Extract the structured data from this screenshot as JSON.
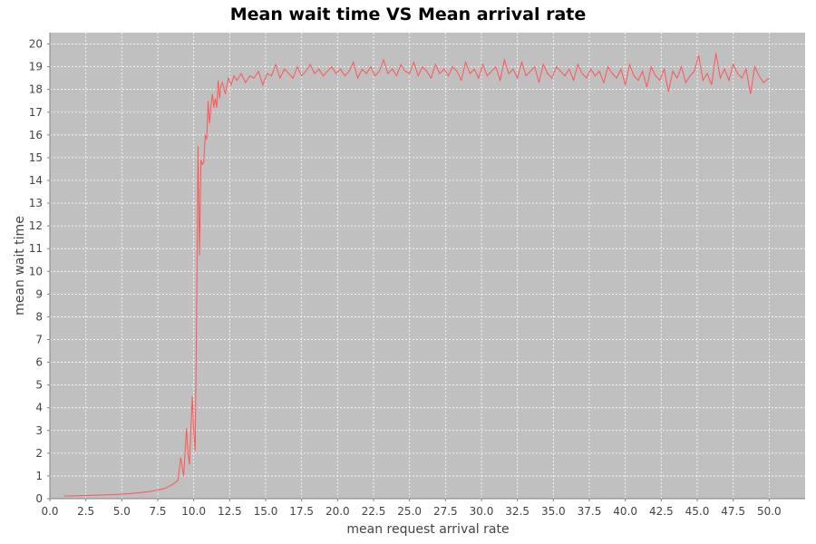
{
  "chart_data": {
    "type": "line",
    "title": "Mean wait time VS Mean arrival rate",
    "xlabel": "mean request arrival rate",
    "ylabel": "mean wait time",
    "xlim": [
      0.0,
      52.5
    ],
    "ylim": [
      0,
      20.5
    ],
    "x_ticks": [
      "0.0",
      "2.5",
      "5.0",
      "7.5",
      "10.0",
      "12.5",
      "15.0",
      "17.5",
      "20.0",
      "22.5",
      "25.0",
      "27.5",
      "30.0",
      "32.5",
      "35.0",
      "37.5",
      "40.0",
      "42.5",
      "45.0",
      "47.5",
      "50.0"
    ],
    "y_ticks": [
      "0",
      "1",
      "2",
      "3",
      "4",
      "5",
      "6",
      "7",
      "8",
      "9",
      "10",
      "11",
      "12",
      "13",
      "14",
      "15",
      "16",
      "17",
      "18",
      "19",
      "20"
    ],
    "grid": true,
    "colors": {
      "plot_background": "#c0c0c0",
      "grid": "#ffffff",
      "line": "#ff5555"
    },
    "series": [
      {
        "x": [
          1.0,
          1.5,
          2.0,
          2.5,
          3.0,
          3.5,
          4.0,
          4.5,
          5.0,
          5.5,
          6.0,
          6.5,
          7.0,
          7.5,
          8.0,
          8.3,
          8.6,
          8.9,
          9.1,
          9.3,
          9.5,
          9.6,
          9.7,
          9.9,
          10.0,
          10.1,
          10.2,
          10.3,
          10.4,
          10.5,
          10.6,
          10.7,
          10.8,
          10.9,
          11.0,
          11.1,
          11.2,
          11.3,
          11.4,
          11.5,
          11.6,
          11.7,
          11.8,
          11.9,
          12.0,
          12.2,
          12.4,
          12.6,
          12.8,
          13.0,
          13.3,
          13.6,
          13.9,
          14.2,
          14.5,
          14.8,
          15.1,
          15.4,
          15.7,
          16.0,
          16.3,
          16.6,
          16.9,
          17.2,
          17.5,
          17.8,
          18.1,
          18.4,
          18.7,
          19.0,
          19.3,
          19.6,
          19.9,
          20.2,
          20.5,
          20.8,
          21.1,
          21.4,
          21.7,
          22.0,
          22.3,
          22.6,
          22.9,
          23.2,
          23.5,
          23.8,
          24.1,
          24.4,
          24.7,
          25.0,
          25.3,
          25.6,
          25.9,
          26.2,
          26.5,
          26.8,
          27.1,
          27.4,
          27.7,
          28.0,
          28.3,
          28.6,
          28.9,
          29.2,
          29.5,
          29.8,
          30.1,
          30.4,
          30.7,
          31.0,
          31.3,
          31.6,
          31.9,
          32.2,
          32.5,
          32.8,
          33.1,
          33.4,
          33.7,
          34.0,
          34.3,
          34.6,
          34.9,
          35.2,
          35.5,
          35.8,
          36.1,
          36.4,
          36.7,
          37.0,
          37.3,
          37.6,
          37.9,
          38.2,
          38.5,
          38.8,
          39.1,
          39.4,
          39.7,
          40.0,
          40.3,
          40.6,
          40.9,
          41.2,
          41.5,
          41.8,
          42.1,
          42.4,
          42.7,
          43.0,
          43.3,
          43.6,
          43.9,
          44.2,
          44.5,
          44.8,
          45.1,
          45.4,
          45.7,
          46.0,
          46.3,
          46.6,
          46.9,
          47.2,
          47.5,
          47.8,
          48.1,
          48.4,
          48.7,
          49.0,
          49.3,
          49.6,
          50.0
        ],
        "values": [
          0.12,
          0.12,
          0.13,
          0.14,
          0.15,
          0.16,
          0.17,
          0.18,
          0.2,
          0.22,
          0.25,
          0.28,
          0.32,
          0.38,
          0.45,
          0.55,
          0.65,
          0.8,
          1.8,
          1.0,
          3.1,
          2.0,
          1.5,
          4.5,
          3.0,
          2.1,
          8.0,
          15.5,
          10.7,
          14.9,
          14.7,
          14.8,
          16.0,
          15.8,
          17.5,
          16.5,
          17.3,
          17.8,
          17.2,
          17.6,
          17.2,
          18.4,
          17.6,
          18.2,
          18.3,
          17.8,
          18.5,
          18.2,
          18.6,
          18.4,
          18.7,
          18.3,
          18.6,
          18.5,
          18.8,
          18.2,
          18.7,
          18.6,
          19.1,
          18.5,
          18.9,
          18.7,
          18.5,
          19.0,
          18.6,
          18.8,
          19.1,
          18.7,
          18.9,
          18.6,
          18.8,
          19.0,
          18.7,
          18.9,
          18.6,
          18.8,
          19.2,
          18.5,
          18.9,
          18.7,
          19.0,
          18.6,
          18.8,
          19.3,
          18.7,
          18.9,
          18.6,
          19.1,
          18.8,
          18.7,
          19.2,
          18.6,
          19.0,
          18.8,
          18.5,
          19.1,
          18.7,
          18.9,
          18.6,
          19.0,
          18.8,
          18.4,
          19.2,
          18.7,
          18.9,
          18.5,
          19.1,
          18.6,
          18.8,
          19.0,
          18.4,
          19.3,
          18.7,
          18.9,
          18.5,
          19.2,
          18.6,
          18.8,
          19.0,
          18.3,
          19.1,
          18.7,
          18.5,
          19.0,
          18.8,
          18.6,
          18.9,
          18.4,
          19.1,
          18.7,
          18.5,
          18.9,
          18.6,
          18.8,
          18.3,
          19.0,
          18.7,
          18.5,
          18.9,
          18.2,
          19.1,
          18.6,
          18.4,
          18.8,
          18.1,
          19.0,
          18.6,
          18.4,
          18.9,
          17.9,
          18.8,
          18.5,
          19.0,
          18.3,
          18.6,
          18.8,
          19.5,
          18.4,
          18.7,
          18.2,
          19.6,
          18.5,
          18.9,
          18.4,
          19.1,
          18.7,
          18.5,
          18.9,
          17.8,
          19.0,
          18.6,
          18.3,
          18.5
        ]
      }
    ]
  }
}
